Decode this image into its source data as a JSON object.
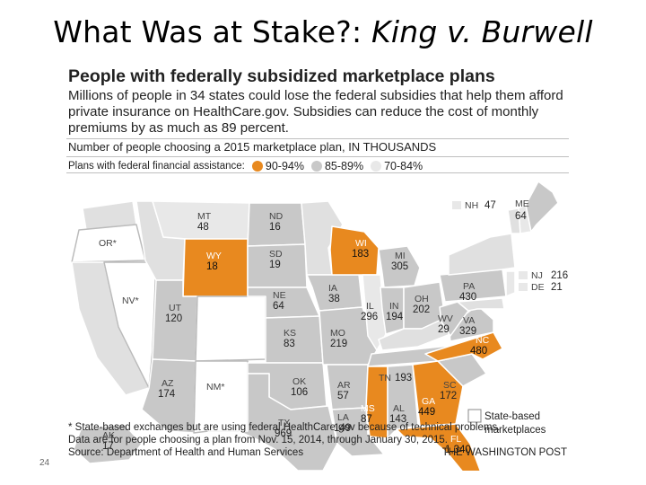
{
  "slide": {
    "title_plain": "What Was at Stake?: ",
    "title_case": "King v. Burwell",
    "page_number": "24"
  },
  "graphic": {
    "title": "People with federally subsidized marketplace plans",
    "description": "Millions of people in 34 states could lose the federal subsidies that help them afford private insurance on HealthCare.gov. Subsidies can reduce the cost of monthly premiums by as much as 89 percent.",
    "note": "Number of people choosing a 2015 marketplace plan, IN THOUSANDS",
    "legend": {
      "label": "Plans with federal financial assistance:",
      "items": [
        {
          "label": "90-94%",
          "color": "#e8891f"
        },
        {
          "label": "85-89%",
          "color": "#c8c8c8"
        },
        {
          "label": "70-84%",
          "color": "#e8e8e8"
        }
      ]
    },
    "state_based_label_1": "State-based",
    "state_based_label_2": "marketplaces",
    "state_based_color": "#ffffff",
    "footnote_1": "* State-based exchanges but are using federal HealthCare.gov because of technical problems.",
    "footnote_2": "Data are for people choosing a plan from Nov. 15, 2014, through January 30, 2015.",
    "source": "Source: Department of Health and Human Services",
    "credit": "THE WASHINGTON POST"
  },
  "states": [
    {
      "abbr": "MT",
      "value": "48",
      "tier": "70-84%"
    },
    {
      "abbr": "ND",
      "value": "16",
      "tier": "85-89%"
    },
    {
      "abbr": "OR*",
      "value": "",
      "tier": "state-based"
    },
    {
      "abbr": "WY",
      "value": "18",
      "tier": "90-94%"
    },
    {
      "abbr": "SD",
      "value": "19",
      "tier": "85-89%"
    },
    {
      "abbr": "WI",
      "value": "183",
      "tier": "90-94%"
    },
    {
      "abbr": "MI",
      "value": "305",
      "tier": "85-89%"
    },
    {
      "abbr": "NV*",
      "value": "",
      "tier": "state-based"
    },
    {
      "abbr": "UT",
      "value": "120",
      "tier": "85-89%"
    },
    {
      "abbr": "NE",
      "value": "64",
      "tier": "85-89%"
    },
    {
      "abbr": "IA",
      "value": "38",
      "tier": "85-89%"
    },
    {
      "abbr": "IL",
      "value": "296",
      "tier": "70-84%"
    },
    {
      "abbr": "IN",
      "value": "194",
      "tier": "85-89%"
    },
    {
      "abbr": "OH",
      "value": "202",
      "tier": "85-89%"
    },
    {
      "abbr": "PA",
      "value": "430",
      "tier": "85-89%"
    },
    {
      "abbr": "KS",
      "value": "83",
      "tier": "85-89%"
    },
    {
      "abbr": "MO",
      "value": "219",
      "tier": "85-89%"
    },
    {
      "abbr": "WV",
      "value": "29",
      "tier": "85-89%"
    },
    {
      "abbr": "VA",
      "value": "329",
      "tier": "85-89%"
    },
    {
      "abbr": "NC",
      "value": "480",
      "tier": "90-94%"
    },
    {
      "abbr": "AZ",
      "value": "174",
      "tier": "85-89%"
    },
    {
      "abbr": "NM*",
      "value": "",
      "tier": "state-based"
    },
    {
      "abbr": "OK",
      "value": "106",
      "tier": "85-89%"
    },
    {
      "abbr": "AR",
      "value": "57",
      "tier": "85-89%"
    },
    {
      "abbr": "TN",
      "value": "193",
      "tier": "85-89%"
    },
    {
      "abbr": "SC",
      "value": "172",
      "tier": "85-89%"
    },
    {
      "abbr": "MS",
      "value": "87",
      "tier": "90-94%"
    },
    {
      "abbr": "AL",
      "value": "143",
      "tier": "85-89%"
    },
    {
      "abbr": "GA",
      "value": "449",
      "tier": "90-94%"
    },
    {
      "abbr": "TX",
      "value": "969",
      "tier": "85-89%"
    },
    {
      "abbr": "LA",
      "value": "149",
      "tier": "85-89%"
    },
    {
      "abbr": "FL",
      "value": "1,340",
      "tier": "90-94%"
    },
    {
      "abbr": "AK",
      "value": "17",
      "tier": "85-89%"
    },
    {
      "abbr": "NH",
      "value": "47",
      "tier": "70-84%"
    },
    {
      "abbr": "ME",
      "value": "64",
      "tier": "85-89%"
    },
    {
      "abbr": "NJ",
      "value": "216",
      "tier": "70-84%"
    },
    {
      "abbr": "DE",
      "value": "21",
      "tier": "70-84%"
    }
  ]
}
